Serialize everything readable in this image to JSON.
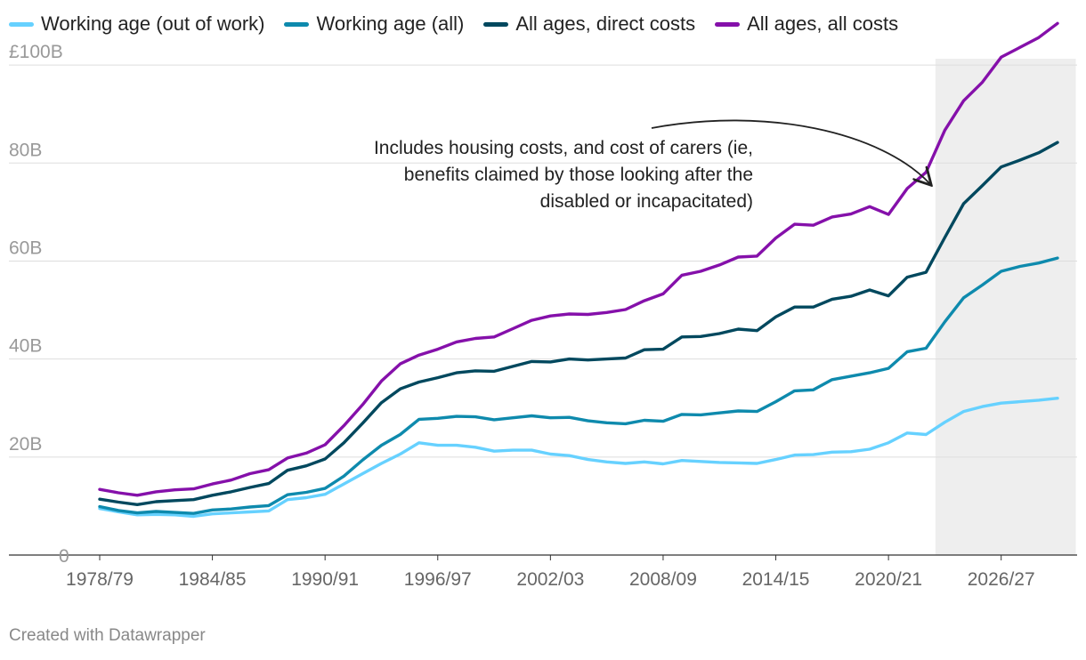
{
  "chart_data": {
    "type": "line",
    "x": [
      "1978/79",
      "1979/80",
      "1980/81",
      "1981/82",
      "1982/83",
      "1983/84",
      "1984/85",
      "1985/86",
      "1986/87",
      "1987/88",
      "1988/89",
      "1989/90",
      "1990/91",
      "1991/92",
      "1992/93",
      "1993/94",
      "1994/95",
      "1995/96",
      "1996/97",
      "1997/98",
      "1998/99",
      "1999/00",
      "2000/01",
      "2001/02",
      "2002/03",
      "2003/04",
      "2004/05",
      "2005/06",
      "2006/07",
      "2007/08",
      "2008/09",
      "2009/10",
      "2010/11",
      "2011/12",
      "2012/13",
      "2013/14",
      "2014/15",
      "2015/16",
      "2016/17",
      "2017/18",
      "2018/19",
      "2019/20",
      "2020/21",
      "2021/22",
      "2022/23",
      "2023/24",
      "2024/25",
      "2025/26",
      "2026/27",
      "2027/28",
      "2028/29",
      "2029/30"
    ],
    "x_tick_labels": [
      "1978/79",
      "1984/85",
      "1990/91",
      "1996/97",
      "2002/03",
      "2008/09",
      "2014/15",
      "2020/21",
      "2026/27"
    ],
    "y_tick_labels": [
      "0",
      "20B",
      "40B",
      "60B",
      "80B",
      "£100B"
    ],
    "ylim": [
      0,
      110
    ],
    "y_ticks": [
      0,
      20,
      40,
      60,
      80,
      100
    ],
    "forecast_shading": {
      "from": "2023/24",
      "to": "2029/30",
      "color": "#eeeeee"
    },
    "legend_position": "top-left",
    "grid": true,
    "series": [
      {
        "name": "Working age (out of work)",
        "color": "#66d1ff",
        "values": [
          9.5,
          8.8,
          8.2,
          8.3,
          8.2,
          7.9,
          8.4,
          8.6,
          8.8,
          9.0,
          11.3,
          11.7,
          12.4,
          14.5,
          16.6,
          18.7,
          20.6,
          22.9,
          22.4,
          22.4,
          22.0,
          21.2,
          21.4,
          21.4,
          20.6,
          20.3,
          19.5,
          19.0,
          18.7,
          19.0,
          18.6,
          19.3,
          19.1,
          18.9,
          18.8,
          18.7,
          19.5,
          20.4,
          20.5,
          21.0,
          21.1,
          21.6,
          22.9,
          24.9,
          24.6,
          27.1,
          29.3,
          30.3,
          31.0,
          31.3,
          31.6,
          32.0
        ]
      },
      {
        "name": "Working age (all)",
        "color": "#0e8aad",
        "values": [
          9.9,
          9.1,
          8.6,
          8.9,
          8.7,
          8.5,
          9.2,
          9.4,
          9.8,
          10.1,
          12.3,
          12.8,
          13.6,
          16.1,
          19.4,
          22.4,
          24.6,
          27.7,
          27.9,
          28.3,
          28.2,
          27.6,
          28.0,
          28.4,
          28.0,
          28.1,
          27.4,
          27.0,
          26.8,
          27.5,
          27.3,
          28.7,
          28.6,
          29.0,
          29.4,
          29.3,
          31.3,
          33.5,
          33.7,
          35.8,
          36.5,
          37.2,
          38.1,
          41.5,
          42.2,
          47.6,
          52.5,
          55.1,
          57.9,
          58.9,
          59.6,
          60.6
        ]
      },
      {
        "name": "All ages, direct costs",
        "color": "#00485e",
        "values": [
          11.4,
          10.8,
          10.3,
          10.9,
          11.1,
          11.3,
          12.2,
          12.9,
          13.8,
          14.6,
          17.3,
          18.2,
          19.6,
          22.9,
          26.9,
          31.1,
          33.9,
          35.3,
          36.2,
          37.2,
          37.6,
          37.5,
          38.5,
          39.5,
          39.4,
          40.0,
          39.8,
          40.0,
          40.2,
          41.9,
          42.0,
          44.5,
          44.6,
          45.2,
          46.1,
          45.8,
          48.6,
          50.6,
          50.6,
          52.2,
          52.8,
          54.1,
          52.9,
          56.7,
          57.7,
          64.8,
          71.7,
          75.4,
          79.2,
          80.6,
          82.1,
          84.2
        ]
      },
      {
        "name": "All ages, all costs",
        "color": "#8510aa",
        "values": [
          13.4,
          12.7,
          12.2,
          12.9,
          13.3,
          13.5,
          14.5,
          15.3,
          16.6,
          17.4,
          19.8,
          20.8,
          22.5,
          26.4,
          30.7,
          35.5,
          39.0,
          40.8,
          42.0,
          43.5,
          44.2,
          44.5,
          46.2,
          47.9,
          48.8,
          49.2,
          49.1,
          49.5,
          50.1,
          51.9,
          53.3,
          57.1,
          57.9,
          59.2,
          60.8,
          61.0,
          64.7,
          67.5,
          67.3,
          69.0,
          69.6,
          71.1,
          69.5,
          74.8,
          78.1,
          86.7,
          92.7,
          96.5,
          101.6,
          103.6,
          105.6,
          108.5
        ]
      }
    ],
    "annotation": "Includes housing costs, and cost of carers (ie, benefits claimed by those looking after the disabled or incapacitated)",
    "annotation_lines": [
      "Includes housing costs, and cost of carers (ie,",
      "benefits claimed by those looking after the",
      "disabled or incapacitated)"
    ],
    "credit": "Created with Datawrapper"
  }
}
